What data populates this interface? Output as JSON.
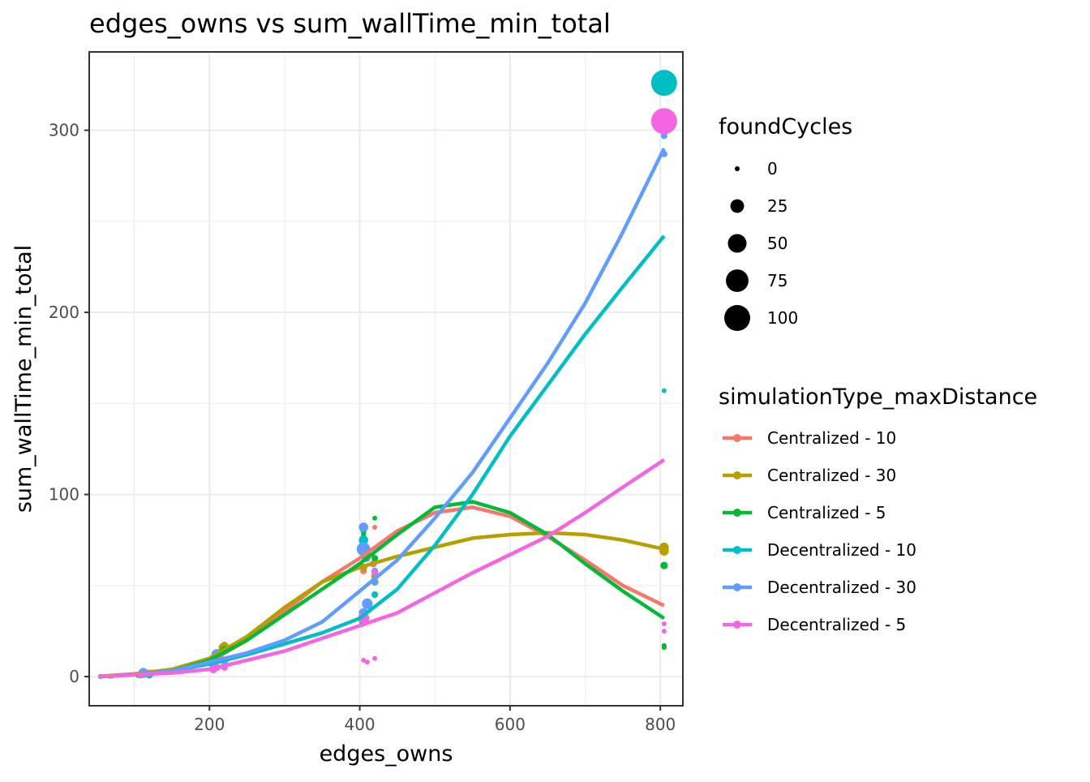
{
  "chart_data": {
    "type": "scatter",
    "title": "edges_owns  vs  sum_wallTime_min_total",
    "xlabel": "edges_owns",
    "ylabel": "sum_wallTime_min_total",
    "xlim": [
      40,
      830
    ],
    "ylim": [
      -16,
      343
    ],
    "x_ticks": [
      200,
      400,
      600,
      800
    ],
    "y_ticks": [
      0,
      100,
      200,
      300
    ],
    "grid": true,
    "legend_size": {
      "title": "foundCycles",
      "entries": [
        {
          "label": "0",
          "value": 0
        },
        {
          "label": "25",
          "value": 25
        },
        {
          "label": "50",
          "value": 50
        },
        {
          "label": "75",
          "value": 75
        },
        {
          "label": "100",
          "value": 100
        }
      ]
    },
    "legend_color": {
      "title": "simulationType_maxDistance",
      "placement": "right"
    },
    "series": [
      {
        "name": "Centralized - 10",
        "color": "#F8766D",
        "trend": [
          [
            55,
            0.1
          ],
          [
            100,
            1
          ],
          [
            150,
            3
          ],
          [
            200,
            8
          ],
          [
            250,
            20
          ],
          [
            300,
            36
          ],
          [
            350,
            52
          ],
          [
            400,
            65
          ],
          [
            450,
            80
          ],
          [
            500,
            90
          ],
          [
            550,
            93
          ],
          [
            600,
            88
          ],
          [
            650,
            77
          ],
          [
            700,
            64
          ],
          [
            750,
            50
          ],
          [
            805,
            39
          ]
        ],
        "points": [
          [
            55,
            0.1,
            0
          ],
          [
            68,
            0.2,
            0
          ],
          [
            105,
            1,
            2
          ],
          [
            110,
            1.5,
            3
          ],
          [
            120,
            1.2,
            0
          ],
          [
            205,
            8,
            4
          ],
          [
            210,
            11,
            8
          ],
          [
            220,
            15,
            4
          ],
          [
            405,
            58,
            3
          ],
          [
            410,
            65,
            3
          ],
          [
            420,
            82,
            0
          ],
          [
            418,
            62,
            4
          ],
          [
            805,
            16,
            0
          ],
          [
            805,
            17,
            0
          ]
        ]
      },
      {
        "name": "Centralized - 30",
        "color": "#B79F00",
        "trend": [
          [
            55,
            0.2
          ],
          [
            100,
            1.5
          ],
          [
            150,
            4
          ],
          [
            200,
            10
          ],
          [
            250,
            22
          ],
          [
            300,
            38
          ],
          [
            350,
            52
          ],
          [
            400,
            60
          ],
          [
            450,
            66
          ],
          [
            500,
            71
          ],
          [
            550,
            76
          ],
          [
            600,
            78
          ],
          [
            650,
            79
          ],
          [
            700,
            78
          ],
          [
            750,
            75
          ],
          [
            805,
            70
          ]
        ],
        "points": [
          [
            55,
            0.1,
            0
          ],
          [
            70,
            0.3,
            0
          ],
          [
            108,
            1,
            3
          ],
          [
            115,
            2,
            2
          ],
          [
            205,
            10,
            5
          ],
          [
            218,
            16,
            8
          ],
          [
            220,
            17,
            6
          ],
          [
            405,
            60,
            5
          ],
          [
            410,
            67,
            4
          ],
          [
            420,
            55,
            4
          ],
          [
            805,
            69,
            10
          ],
          [
            805,
            71,
            10
          ]
        ]
      },
      {
        "name": "Centralized - 5",
        "color": "#00BA38",
        "trend": [
          [
            55,
            0.1
          ],
          [
            100,
            1
          ],
          [
            150,
            3
          ],
          [
            200,
            9
          ],
          [
            250,
            20
          ],
          [
            300,
            34
          ],
          [
            350,
            48
          ],
          [
            400,
            62
          ],
          [
            450,
            78
          ],
          [
            500,
            93
          ],
          [
            550,
            96
          ],
          [
            600,
            90
          ],
          [
            650,
            78
          ],
          [
            700,
            62
          ],
          [
            750,
            47
          ],
          [
            805,
            32
          ]
        ],
        "points": [
          [
            55,
            0.1,
            0
          ],
          [
            68,
            0.2,
            0
          ],
          [
            105,
            1,
            2
          ],
          [
            118,
            1.5,
            2
          ],
          [
            205,
            9,
            4
          ],
          [
            215,
            13,
            6
          ],
          [
            220,
            15,
            4
          ],
          [
            405,
            80,
            2
          ],
          [
            405,
            78,
            0
          ],
          [
            420,
            87,
            0
          ],
          [
            420,
            65,
            3
          ],
          [
            805,
            61,
            5
          ],
          [
            805,
            17,
            0
          ],
          [
            805,
            16,
            0
          ]
        ]
      },
      {
        "name": "Decentralized - 10",
        "color": "#00BFC4",
        "trend": [
          [
            55,
            0.1
          ],
          [
            100,
            1
          ],
          [
            150,
            3
          ],
          [
            200,
            7
          ],
          [
            250,
            12
          ],
          [
            300,
            18
          ],
          [
            350,
            24
          ],
          [
            400,
            32
          ],
          [
            450,
            48
          ],
          [
            500,
            72
          ],
          [
            550,
            100
          ],
          [
            600,
            132
          ],
          [
            650,
            160
          ],
          [
            700,
            188
          ],
          [
            750,
            214
          ],
          [
            805,
            242
          ]
        ],
        "points": [
          [
            55,
            0.1,
            0
          ],
          [
            70,
            0.3,
            0
          ],
          [
            108,
            1,
            3
          ],
          [
            120,
            1,
            5
          ],
          [
            205,
            7,
            8
          ],
          [
            212,
            9,
            4
          ],
          [
            405,
            75,
            10
          ],
          [
            408,
            65,
            5
          ],
          [
            410,
            40,
            12
          ],
          [
            405,
            30,
            8
          ],
          [
            420,
            45,
            3
          ],
          [
            805,
            326,
            100
          ],
          [
            805,
            157,
            0
          ]
        ]
      },
      {
        "name": "Decentralized - 30",
        "color": "#619CFF",
        "trend": [
          [
            55,
            0.1
          ],
          [
            100,
            1
          ],
          [
            150,
            3
          ],
          [
            200,
            8
          ],
          [
            250,
            13
          ],
          [
            300,
            20
          ],
          [
            350,
            30
          ],
          [
            400,
            47
          ],
          [
            450,
            64
          ],
          [
            500,
            87
          ],
          [
            550,
            112
          ],
          [
            600,
            142
          ],
          [
            650,
            172
          ],
          [
            700,
            205
          ],
          [
            750,
            244
          ],
          [
            805,
            290
          ]
        ],
        "points": [
          [
            55,
            0.1,
            0
          ],
          [
            70,
            0.2,
            0
          ],
          [
            108,
            1,
            5
          ],
          [
            112,
            2,
            12
          ],
          [
            205,
            8,
            12
          ],
          [
            210,
            12,
            16
          ],
          [
            212,
            10,
            14
          ],
          [
            220,
            8,
            4
          ],
          [
            405,
            82,
            10
          ],
          [
            405,
            70,
            25
          ],
          [
            410,
            40,
            14
          ],
          [
            405,
            35,
            10
          ],
          [
            420,
            52,
            5
          ],
          [
            420,
            58,
            3
          ],
          [
            805,
            297,
            3
          ],
          [
            805,
            287,
            3
          ]
        ]
      },
      {
        "name": "Decentralized - 5",
        "color": "#F564E3",
        "trend": [
          [
            55,
            0.1
          ],
          [
            100,
            1
          ],
          [
            150,
            2
          ],
          [
            200,
            4
          ],
          [
            250,
            9
          ],
          [
            300,
            14
          ],
          [
            350,
            21
          ],
          [
            400,
            28
          ],
          [
            450,
            35
          ],
          [
            500,
            46
          ],
          [
            550,
            57
          ],
          [
            600,
            67
          ],
          [
            650,
            77
          ],
          [
            700,
            90
          ],
          [
            750,
            104
          ],
          [
            805,
            119
          ]
        ],
        "points": [
          [
            55,
            0.1,
            0
          ],
          [
            70,
            0.2,
            0
          ],
          [
            108,
            1,
            3
          ],
          [
            120,
            2,
            4
          ],
          [
            205,
            4,
            6
          ],
          [
            210,
            5,
            4
          ],
          [
            220,
            5,
            3
          ],
          [
            405,
            32,
            16
          ],
          [
            405,
            9,
            0
          ],
          [
            410,
            8,
            0
          ],
          [
            420,
            10,
            0
          ],
          [
            420,
            57,
            3
          ],
          [
            805,
            305,
            100
          ],
          [
            805,
            29,
            0
          ],
          [
            805,
            25,
            0
          ]
        ]
      }
    ]
  }
}
